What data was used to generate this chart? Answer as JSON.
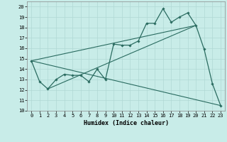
{
  "xlabel": "Humidex (Indice chaleur)",
  "bg_color": "#c8ece8",
  "grid_color": "#b0d8d4",
  "line_color": "#2a6b60",
  "xlim": [
    -0.5,
    23.5
  ],
  "ylim": [
    10,
    20.5
  ],
  "xticks": [
    0,
    1,
    2,
    3,
    4,
    5,
    6,
    7,
    8,
    9,
    10,
    11,
    12,
    13,
    14,
    15,
    16,
    17,
    18,
    19,
    20,
    21,
    22,
    23
  ],
  "yticks": [
    10,
    11,
    12,
    13,
    14,
    15,
    16,
    17,
    18,
    19,
    20
  ],
  "series_x": [
    0,
    1,
    2,
    3,
    4,
    5,
    6,
    7,
    8,
    9,
    10,
    11,
    12,
    13,
    14,
    15,
    16,
    17,
    18,
    19,
    20,
    21,
    22,
    23
  ],
  "series_y": [
    14.8,
    12.8,
    12.1,
    13.0,
    13.5,
    13.4,
    13.4,
    12.8,
    14.0,
    13.0,
    16.4,
    16.3,
    16.3,
    16.7,
    18.4,
    18.4,
    19.8,
    18.5,
    19.0,
    19.4,
    18.2,
    15.9,
    12.6,
    10.5
  ],
  "line1_x": [
    0,
    20
  ],
  "line1_y": [
    14.8,
    18.2
  ],
  "line2_x": [
    0,
    23
  ],
  "line2_y": [
    14.8,
    10.5
  ],
  "line3_x": [
    2,
    20
  ],
  "line3_y": [
    12.1,
    18.2
  ]
}
